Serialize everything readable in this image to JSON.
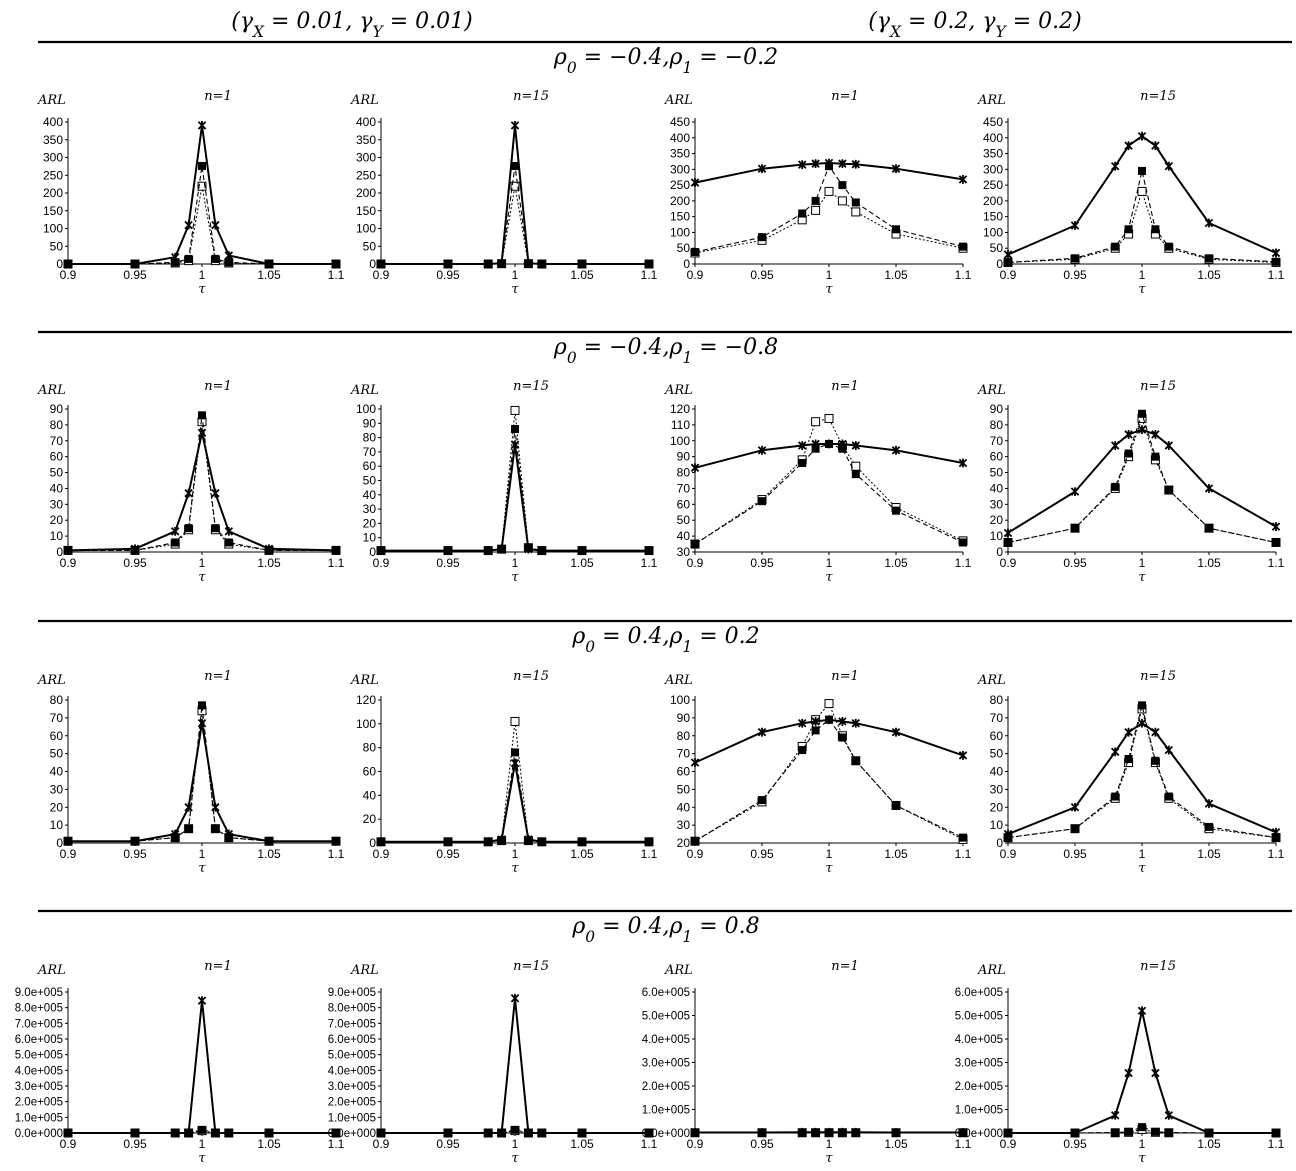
{
  "column_headers": [
    "(γ_X = 0.01, γ_Y = 0.01)",
    "(γ_X = 0.2, γ_Y = 0.2)"
  ],
  "chart_data": {
    "type": "line",
    "x": [
      0.9,
      0.95,
      0.98,
      0.99,
      1.0,
      1.01,
      1.02,
      1.05,
      1.1
    ],
    "xticks": [
      "0.9",
      "0.95",
      "1",
      "1.05",
      "1.1"
    ],
    "xlabel": "τ",
    "ylabel": "ARL",
    "grid": false,
    "legend": "none",
    "series_styles": [
      "solid-star",
      "dashed-filled-square",
      "dashed-open-square"
    ],
    "rows": [
      {
        "title": "ρ_0 = −0.4,ρ_1 = −0.2",
        "panels": [
          {
            "label": "n=1",
            "ylim": [
              0,
              420
            ],
            "yticks": [
              "0",
              "50",
              "100",
              "150",
              "200",
              "250",
              "300",
              "350",
              "400"
            ],
            "series": [
              [
                0,
                0,
                20,
                115,
                410,
                115,
                25,
                0,
                0
              ],
              [
                0,
                0,
                5,
                15,
                290,
                15,
                5,
                0,
                0
              ],
              [
                0,
                0,
                3,
                10,
                230,
                10,
                3,
                0,
                0
              ]
            ]
          },
          {
            "label": "n=15",
            "ylim": [
              0,
              420
            ],
            "yticks": [
              "0",
              "50",
              "100",
              "150",
              "200",
              "250",
              "300",
              "350",
              "400"
            ],
            "series": [
              [
                0,
                0,
                0,
                2,
                410,
                2,
                0,
                0,
                0
              ],
              [
                0,
                0,
                0,
                1,
                290,
                1,
                0,
                0,
                0
              ],
              [
                0,
                0,
                0,
                1,
                230,
                1,
                0,
                0,
                0
              ]
            ]
          },
          {
            "label": "n=1",
            "ylim": [
              0,
              450
            ],
            "yticks": [
              "0",
              "50",
              "100",
              "150",
              "200",
              "250",
              "300",
              "350",
              "400",
              "450"
            ],
            "series": [
              [
                258,
                302,
                315,
                318,
                320,
                318,
                316,
                302,
                268
              ],
              [
                38,
                85,
                160,
                200,
                310,
                250,
                195,
                110,
                55
              ],
              [
                35,
                75,
                140,
                170,
                230,
                200,
                165,
                95,
                50
              ]
            ]
          },
          {
            "label": "n=15",
            "ylim": [
              0,
              450
            ],
            "yticks": [
              "0",
              "50",
              "100",
              "150",
              "200",
              "250",
              "300",
              "350",
              "400",
              "450"
            ],
            "series": [
              [
                30,
                122,
                310,
                375,
                405,
                375,
                310,
                130,
                35
              ],
              [
                5,
                18,
                55,
                110,
                295,
                110,
                55,
                18,
                7
              ],
              [
                5,
                15,
                50,
                95,
                230,
                95,
                50,
                15,
                5
              ]
            ]
          }
        ]
      },
      {
        "title": "ρ_0 = −0.4,ρ_1 = −0.8",
        "panels": [
          {
            "label": "n=1",
            "ylim": [
              0,
              90
            ],
            "yticks": [
              "0",
              "10",
              "20",
              "30",
              "40",
              "50",
              "60",
              "70",
              "80",
              "90"
            ],
            "series": [
              [
                1,
                2,
                13,
                37,
                75,
                37,
                13,
                2,
                1
              ],
              [
                1,
                1,
                6,
                15,
                86,
                15,
                6,
                1,
                1
              ],
              [
                1,
                1,
                5,
                14,
                82,
                14,
                5,
                1,
                1
              ]
            ]
          },
          {
            "label": "n=15",
            "ylim": [
              0,
              100
            ],
            "yticks": [
              "0",
              "10",
              "20",
              "30",
              "40",
              "50",
              "60",
              "70",
              "80",
              "90",
              "100"
            ],
            "series": [
              [
                1,
                1,
                1,
                2,
                75,
                2,
                1,
                1,
                1
              ],
              [
                1,
                1,
                1,
                2,
                86,
                3,
                1,
                1,
                1
              ],
              [
                1,
                1,
                1,
                2,
                99,
                3,
                1,
                1,
                1
              ]
            ]
          },
          {
            "label": "n=1",
            "ylim": [
              30,
              120
            ],
            "yticks": [
              "30",
              "40",
              "50",
              "60",
              "70",
              "80",
              "90",
              "100",
              "110",
              "120"
            ],
            "series": [
              [
                83,
                94,
                97,
                98,
                98,
                98,
                97,
                94,
                86
              ],
              [
                35,
                62,
                86,
                95,
                98,
                95,
                79,
                56,
                36
              ],
              [
                35,
                63,
                88,
                112,
                114,
                97,
                84,
                58,
                37
              ]
            ]
          },
          {
            "label": "n=15",
            "ylim": [
              0,
              90
            ],
            "yticks": [
              "0",
              "10",
              "20",
              "30",
              "40",
              "50",
              "60",
              "70",
              "80",
              "90"
            ],
            "series": [
              [
                12,
                38,
                67,
                74,
                77,
                74,
                67,
                40,
                16
              ],
              [
                6,
                15,
                41,
                62,
                87,
                60,
                39,
                15,
                6
              ],
              [
                6,
                15,
                40,
                60,
                84,
                58,
                39,
                15,
                6
              ]
            ]
          }
        ]
      },
      {
        "title": "ρ_0 = 0.4,ρ_1 = 0.2",
        "panels": [
          {
            "label": "n=1",
            "ylim": [
              0,
              80
            ],
            "yticks": [
              "0",
              "10",
              "20",
              "30",
              "40",
              "50",
              "60",
              "70",
              "80"
            ],
            "series": [
              [
                1,
                1,
                5,
                20,
                67,
                20,
                5,
                1,
                1
              ],
              [
                1,
                1,
                3,
                8,
                77,
                8,
                3,
                1,
                1
              ],
              [
                1,
                1,
                3,
                8,
                74,
                8,
                3,
                1,
                1
              ]
            ]
          },
          {
            "label": "n=15",
            "ylim": [
              0,
              120
            ],
            "yticks": [
              "0",
              "20",
              "40",
              "60",
              "80",
              "100",
              "120"
            ],
            "series": [
              [
                1,
                1,
                1,
                3,
                67,
                3,
                1,
                1,
                1
              ],
              [
                1,
                1,
                1,
                2,
                76,
                2,
                1,
                1,
                1
              ],
              [
                1,
                1,
                1,
                2,
                102,
                2,
                1,
                1,
                1
              ]
            ]
          },
          {
            "label": "n=1",
            "ylim": [
              20,
              100
            ],
            "yticks": [
              "20",
              "30",
              "40",
              "50",
              "60",
              "70",
              "80",
              "90",
              "100"
            ],
            "series": [
              [
                65,
                82,
                87,
                88,
                89,
                88,
                87,
                82,
                69
              ],
              [
                21,
                44,
                72,
                83,
                89,
                79,
                66,
                41,
                23
              ],
              [
                21,
                43,
                74,
                89,
                98,
                80,
                66,
                41,
                22
              ]
            ]
          },
          {
            "label": "n=15",
            "ylim": [
              0,
              80
            ],
            "yticks": [
              "0",
              "10",
              "20",
              "30",
              "40",
              "50",
              "60",
              "70",
              "80"
            ],
            "series": [
              [
                5,
                20,
                51,
                62,
                67,
                62,
                52,
                22,
                6
              ],
              [
                3,
                8,
                26,
                47,
                77,
                46,
                26,
                9,
                3
              ],
              [
                3,
                8,
                25,
                45,
                75,
                45,
                25,
                8,
                3
              ]
            ]
          }
        ]
      },
      {
        "title": "ρ_0 = 0.4,ρ_1 = 0.8",
        "panels": [
          {
            "label": "n=1",
            "ylim": [
              0,
              900000
            ],
            "yticks": [
              "0.0e+000",
              "1.0e+005",
              "2.0e+005",
              "3.0e+005",
              "4.0e+005",
              "5.0e+005",
              "6.0e+005",
              "7.0e+005",
              "8.0e+005",
              "9.0e+005"
            ],
            "series": [
              [
                0,
                0,
                0,
                0,
                845000,
                0,
                0,
                0,
                0
              ],
              [
                0,
                0,
                0,
                0,
                20000,
                0,
                0,
                0,
                0
              ],
              [
                0,
                0,
                0,
                0,
                15000,
                0,
                0,
                0,
                0
              ]
            ]
          },
          {
            "label": "n=15",
            "ylim": [
              0,
              900000
            ],
            "yticks": [
              "0.0e+000",
              "1.0e+005",
              "2.0e+005",
              "3.0e+005",
              "4.0e+005",
              "5.0e+005",
              "6.0e+005",
              "7.0e+005",
              "8.0e+005",
              "9.0e+005"
            ],
            "series": [
              [
                0,
                0,
                0,
                0,
                860000,
                0,
                0,
                0,
                0
              ],
              [
                0,
                0,
                0,
                0,
                20000,
                0,
                0,
                0,
                0
              ],
              [
                0,
                0,
                0,
                0,
                15000,
                0,
                0,
                0,
                0
              ]
            ]
          },
          {
            "label": "n=1",
            "ylim": [
              0,
              600000
            ],
            "yticks": [
              "0.0e+000",
              "1.0e+005",
              "2.0e+005",
              "3.0e+005",
              "4.0e+005",
              "5.0e+005",
              "6.0e+005"
            ],
            "series": [
              [
                2000,
                2000,
                3000,
                3000,
                3000,
                3000,
                3000,
                2000,
                2000
              ],
              [
                1000,
                1000,
                1000,
                1000,
                1000,
                1000,
                1000,
                1000,
                1000
              ],
              [
                1000,
                1000,
                1000,
                1000,
                1000,
                1000,
                1000,
                1000,
                1000
              ]
            ]
          },
          {
            "label": "n=15",
            "ylim": [
              0,
              600000
            ],
            "yticks": [
              "0.0e+000",
              "1.0e+005",
              "2.0e+005",
              "3.0e+005",
              "4.0e+005",
              "5.0e+005",
              "6.0e+005"
            ],
            "series": [
              [
                0,
                0,
                75000,
                255000,
                520000,
                255000,
                75000,
                0,
                0
              ],
              [
                0,
                0,
                2000,
                5000,
                25000,
                5000,
                2000,
                0,
                0
              ],
              [
                0,
                0,
                1000,
                3000,
                15000,
                3000,
                1000,
                0,
                0
              ]
            ]
          }
        ]
      }
    ]
  }
}
